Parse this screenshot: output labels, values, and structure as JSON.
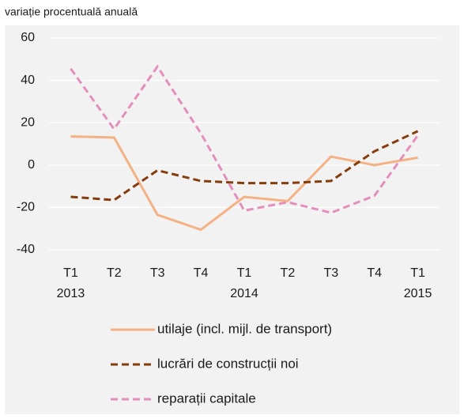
{
  "chart_data": {
    "type": "line",
    "subtitle": "variație procentuală anuală",
    "categories": [
      "T1",
      "T2",
      "T3",
      "T4",
      "T1",
      "T2",
      "T3",
      "T4",
      "T1"
    ],
    "years": [
      "2013",
      null,
      null,
      null,
      "2014",
      null,
      null,
      null,
      "2015"
    ],
    "ylim": [
      -40,
      60
    ],
    "yticks": [
      -40,
      -20,
      0,
      20,
      40,
      60
    ],
    "grid": true,
    "series": [
      {
        "name": "utilaje (incl. mijl. de transport)",
        "color": "#f4b183",
        "dash": false,
        "values": [
          13.5,
          13,
          -23.5,
          -30.5,
          -15,
          -17,
          4,
          0,
          3.5
        ]
      },
      {
        "name": "lucrări de construcții noi",
        "color": "#843c0c",
        "dash": true,
        "values": [
          -15,
          -16.5,
          -2.5,
          -7.5,
          -8.5,
          -8.5,
          -7.5,
          6.5,
          16
        ]
      },
      {
        "name": "reparații capitale",
        "color": "#e38fbc",
        "dash": true,
        "values": [
          45.5,
          17,
          46.5,
          15,
          -21.5,
          -17.5,
          -22.5,
          -14.5,
          14
        ]
      }
    ]
  }
}
